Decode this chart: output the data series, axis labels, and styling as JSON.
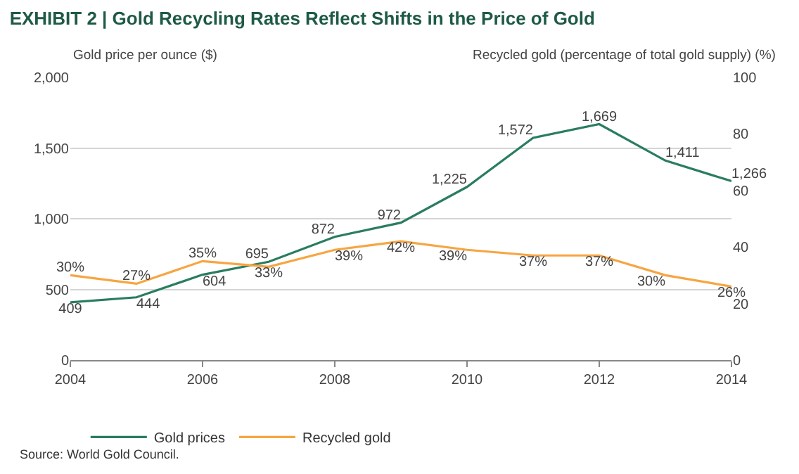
{
  "chart_data": {
    "type": "line",
    "title": "EXHIBIT 2 | Gold Recycling Rates Reflect Shifts in the Price of Gold",
    "ylabel": "Gold price per ounce ($)",
    "y2label": "Recycled gold (percentage of total gold supply) (%)",
    "x": [
      2004,
      2005,
      2006,
      2007,
      2008,
      2009,
      2010,
      2011,
      2012,
      2013,
      2014
    ],
    "series": [
      {
        "name": "Gold prices",
        "color": "#2a7d5f",
        "values": [
          409,
          444,
          604,
          695,
          872,
          972,
          1225,
          1572,
          1669,
          1411,
          1266
        ],
        "value_labels": [
          "409",
          "444",
          "604",
          "695",
          "872",
          "972",
          "1,225",
          "1,572",
          "1,669",
          "1,411",
          "1,266"
        ]
      },
      {
        "name": "Recycled gold",
        "color": "#f7a541",
        "axis": "y2",
        "values": [
          30,
          27,
          35,
          33,
          39,
          42,
          39,
          37,
          37,
          30,
          26
        ],
        "value_labels": [
          "30%",
          "27%",
          "35%",
          "33%",
          "39%",
          "42%",
          "39%",
          "37%",
          "37%",
          "30%",
          "26%"
        ]
      }
    ],
    "xlim": [
      2004,
      2014
    ],
    "xticks": [
      2004,
      2006,
      2008,
      2010,
      2012,
      2014
    ],
    "ylim": [
      0,
      2000
    ],
    "yticks": [
      0,
      500,
      {
        "value": 1000,
        "label": "1,000"
      },
      {
        "value": 1500,
        "label": "1,500"
      },
      {
        "value": 2000,
        "label": "2,000"
      }
    ],
    "y2lim": [
      0,
      100
    ],
    "y2ticks": [
      0,
      20,
      40,
      60,
      80,
      100
    ],
    "grid": "y",
    "legend": "bottom",
    "marker": "none",
    "line_style": "solid",
    "annotations": [
      "Source: World Gold Council."
    ]
  }
}
